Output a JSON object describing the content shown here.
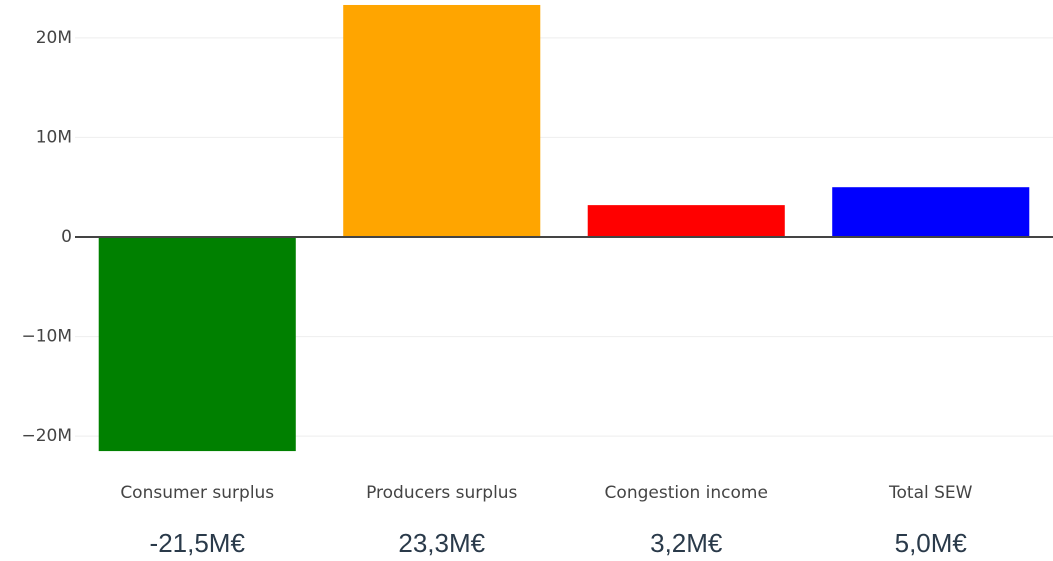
{
  "chart_data": {
    "type": "bar",
    "categories": [
      "Consumer surplus",
      "Producers surplus",
      "Congestion income",
      "Total SEW"
    ],
    "values": [
      -21500000,
      23300000,
      3200000,
      5000000
    ],
    "value_labels": [
      "-21,5M€",
      "23,3M€",
      "3,2M€",
      "5,0M€"
    ],
    "colors": [
      "#008000",
      "#ffa500",
      "#ff0000",
      "#0000ff"
    ],
    "ylim": [
      -23400000,
      23800000
    ],
    "yticks": [
      {
        "value": -20000000,
        "label": "−20M"
      },
      {
        "value": -10000000,
        "label": "−10M"
      },
      0,
      {
        "value": 10000000,
        "label": "10M"
      },
      {
        "value": 20000000,
        "label": "20M"
      }
    ],
    "grid": true
  }
}
